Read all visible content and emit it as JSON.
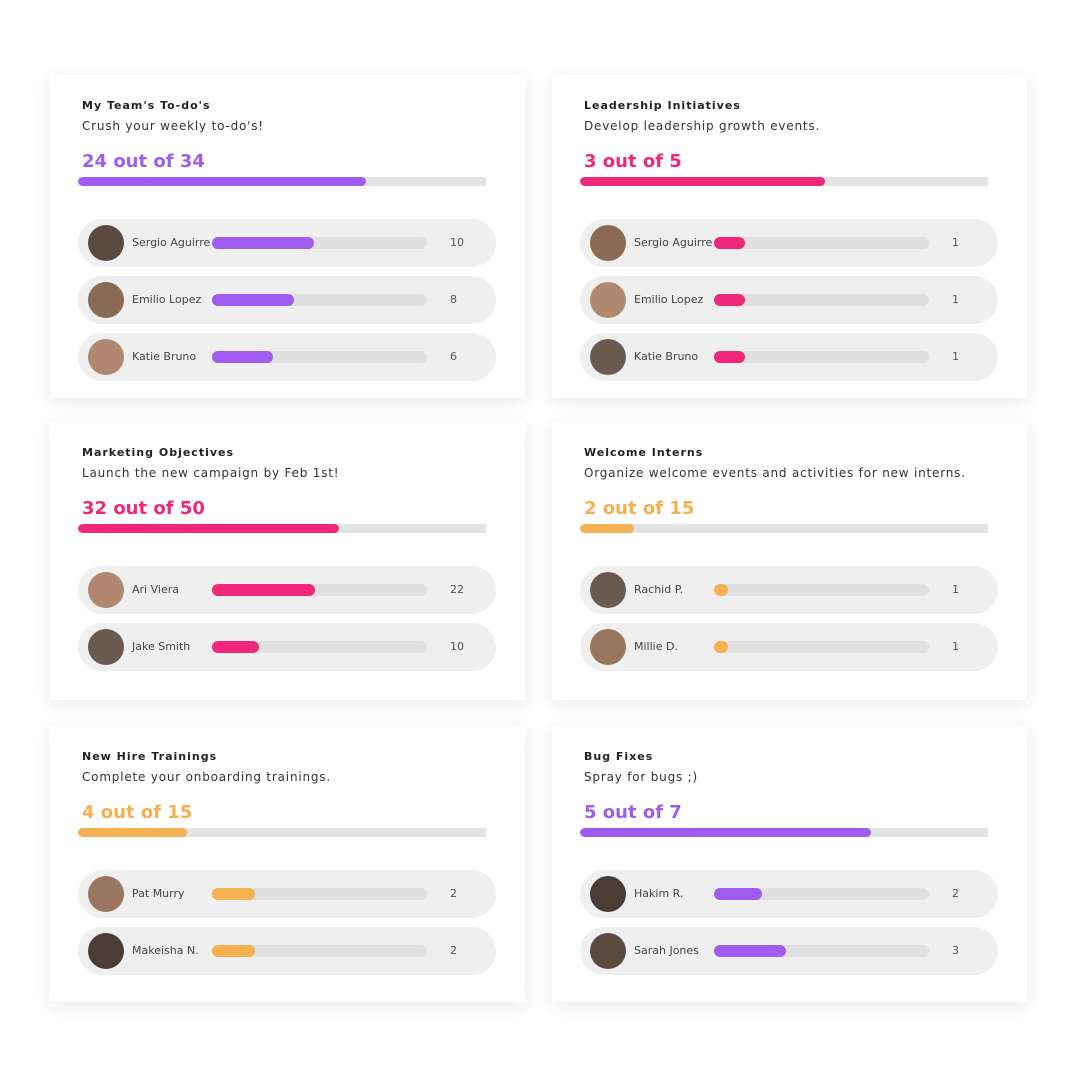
{
  "cards": [
    {
      "title": "My Team's To-do's",
      "subtitle": "Crush your weekly to-do's!",
      "progress": {
        "value": 24,
        "label": "24 out of 34"
      },
      "total": 34,
      "color": "#a05cf0",
      "member_lim": [
        0,
        21
      ],
      "members": [
        {
          "name": "Sergio Aguirre",
          "count": 10
        },
        {
          "name": "Emilio Lopez",
          "count": 8
        },
        {
          "name": "Katie Bruno",
          "count": 6
        }
      ]
    },
    {
      "title": "Leadership Initiatives",
      "subtitle": "Develop leadership growth events.",
      "progress": {
        "value": 3,
        "label": "3 out of 5"
      },
      "total": 5,
      "color": "#f0287a",
      "member_lim": [
        0,
        7
      ],
      "members": [
        {
          "name": "Sergio Aguirre",
          "count": 1
        },
        {
          "name": "Emilio Lopez",
          "count": 1
        },
        {
          "name": "Katie Bruno",
          "count": 1
        }
      ]
    },
    {
      "title": "Marketing Objectives",
      "subtitle": "Launch the new campaign by Feb 1st!",
      "progress": {
        "value": 32,
        "label": "32 out of 50"
      },
      "total": 50,
      "color": "#f0287a",
      "member_lim": [
        0,
        46
      ],
      "members": [
        {
          "name": "Ari Viera",
          "count": 22
        },
        {
          "name": "Jake Smith",
          "count": 10
        }
      ]
    },
    {
      "title": "Welcome Interns",
      "subtitle": "Organize welcome events and activities for new interns.",
      "progress": {
        "value": 2,
        "label": "2 out of 15"
      },
      "total": 15,
      "color": "#f5b052",
      "member_lim": [
        0,
        15
      ],
      "members": [
        {
          "name": "Rachid P.",
          "count": 1
        },
        {
          "name": "Millie D.",
          "count": 1
        }
      ]
    },
    {
      "title": "New Hire Trainings",
      "subtitle": "Complete your onboarding trainings.",
      "progress": {
        "value": 4,
        "label": "4 out of 15"
      },
      "total": 15,
      "color": "#f5b052",
      "member_lim": [
        0,
        10
      ],
      "members": [
        {
          "name": "Pat Murry",
          "count": 2
        },
        {
          "name": "Makeisha N.",
          "count": 2
        }
      ]
    },
    {
      "title": "Bug Fixes",
      "subtitle": "Spray for bugs ;)",
      "progress": {
        "value": 5,
        "label": "5 out of 7"
      },
      "total": 7,
      "color": "#a05cf0",
      "member_lim": [
        0,
        9
      ],
      "members": [
        {
          "name": "Hakim R.",
          "count": 2
        },
        {
          "name": "Sarah Jones",
          "count": 3
        }
      ]
    }
  ]
}
